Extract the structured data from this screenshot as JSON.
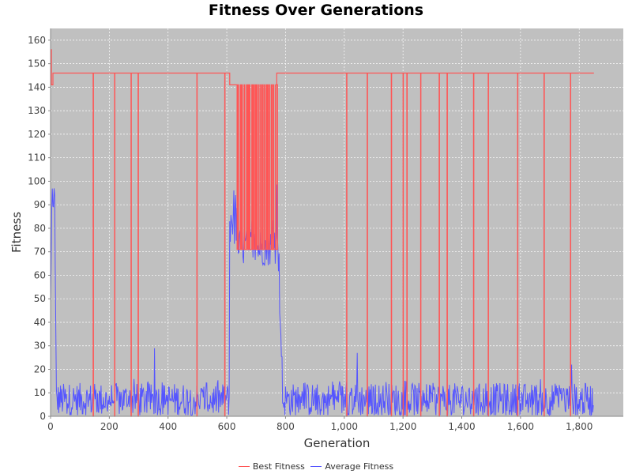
{
  "colors": {
    "best": "#ff5555",
    "average": "#5555ff",
    "plot_background": "#c0c0c0",
    "gridlines": "#ffffff"
  },
  "chart_data": {
    "type": "line",
    "title": "Fitness Over Generations",
    "xlabel": "Generation",
    "ylabel": "Fitness",
    "xlim": [
      0,
      1950
    ],
    "ylim": [
      0,
      165
    ],
    "xticks": [
      0,
      200,
      400,
      600,
      800,
      1000,
      1200,
      1400,
      1600,
      1800
    ],
    "xtick_labels": [
      "0",
      "200",
      "400",
      "600",
      "800",
      "1,000",
      "1,200",
      "1,400",
      "1,600",
      "1,800"
    ],
    "yticks": [
      0,
      10,
      20,
      30,
      40,
      50,
      60,
      70,
      80,
      90,
      100,
      110,
      120,
      130,
      140,
      150,
      160
    ],
    "grid": true,
    "legend": "bottom",
    "series": [
      {
        "name": "Best Fitness",
        "color": "#ff5555",
        "baseline_segments": [
          {
            "x_start": 0,
            "x_end": 3,
            "y": 156
          },
          {
            "x_start": 3,
            "x_end": 8,
            "y": 141
          },
          {
            "x_start": 8,
            "x_end": 610,
            "y": 146
          },
          {
            "x_start": 610,
            "x_end": 635,
            "y": 141
          },
          {
            "x_start": 635,
            "x_end": 770,
            "y": 72
          },
          {
            "x_start": 770,
            "x_end": 1850,
            "y": 146
          }
        ],
        "drops_to_zero_at": [
          145,
          218,
          274,
          298,
          498,
          593,
          1008,
          1078,
          1160,
          1200,
          1213,
          1260,
          1323,
          1350,
          1440,
          1490,
          1590,
          1680,
          1770
        ],
        "oscillation_range": {
          "x_start": 635,
          "x_end": 770,
          "low": 71,
          "high": 141
        }
      },
      {
        "name": "Average Fitness",
        "color": "#5555ff",
        "segments": [
          {
            "x_start": 0,
            "x_end": 20,
            "level": 85,
            "note": "initial peak ~97"
          },
          {
            "x_start": 20,
            "x_end": 610,
            "level": 7,
            "range": [
              0,
              16
            ]
          },
          {
            "x_start": 610,
            "x_end": 635,
            "level": 85,
            "range": [
              65,
              94
            ]
          },
          {
            "x_start": 635,
            "x_end": 770,
            "level": 72,
            "range": [
              70,
              88
            ]
          },
          {
            "x_start": 770,
            "x_end": 790,
            "level": 60,
            "range": [
              20,
              98
            ]
          },
          {
            "x_start": 790,
            "x_end": 1850,
            "level": 7,
            "range": [
              0,
              16
            ]
          }
        ],
        "notable_spikes": [
          {
            "x": 355,
            "y": 29
          },
          {
            "x": 1045,
            "y": 27
          },
          {
            "x": 1775,
            "y": 22
          }
        ]
      }
    ]
  }
}
